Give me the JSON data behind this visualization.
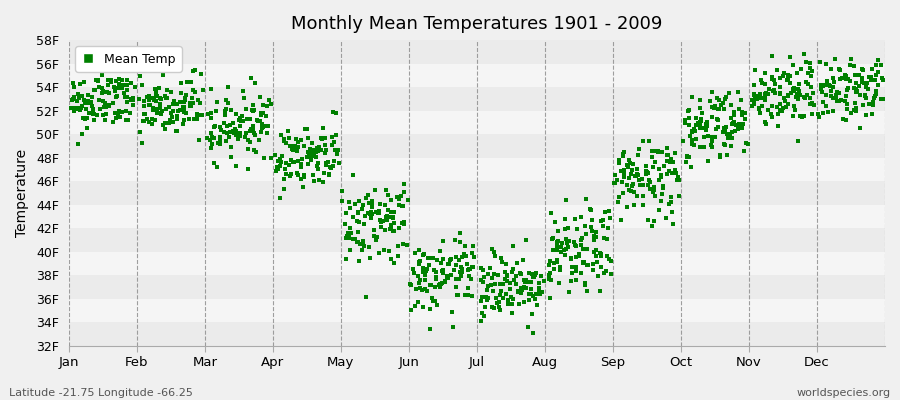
{
  "title": "Monthly Mean Temperatures 1901 - 2009",
  "ylabel": "Temperature",
  "bottom_left": "Latitude -21.75 Longitude -66.25",
  "bottom_right": "worldspecies.org",
  "legend_label": "Mean Temp",
  "ylim": [
    32,
    58
  ],
  "yticks": [
    32,
    34,
    36,
    38,
    40,
    42,
    44,
    46,
    48,
    50,
    52,
    54,
    56,
    58
  ],
  "ytick_labels": [
    "32F",
    "34F",
    "36F",
    "38F",
    "40F",
    "42F",
    "44F",
    "46F",
    "48F",
    "50F",
    "52F",
    "54F",
    "56F",
    "58F"
  ],
  "months": [
    "Jan",
    "Feb",
    "Mar",
    "Apr",
    "May",
    "Jun",
    "Jul",
    "Aug",
    "Sep",
    "Oct",
    "Nov",
    "Dec"
  ],
  "dot_color": "#008000",
  "background_color": "#f0f0f0",
  "band_colors": [
    "#ebebeb",
    "#f5f5f5"
  ],
  "n_years": 109,
  "seed": 42,
  "monthly_means": [
    52.8,
    52.2,
    50.8,
    48.2,
    42.5,
    37.8,
    37.2,
    39.8,
    46.2,
    50.8,
    53.5,
    53.8
  ],
  "monthly_stds": [
    1.3,
    1.4,
    1.4,
    1.3,
    1.8,
    1.5,
    1.5,
    1.8,
    1.8,
    1.6,
    1.5,
    1.3
  ],
  "trend_per_year": [
    0.005,
    0.005,
    0.005,
    0.005,
    0.005,
    0.005,
    0.005,
    0.005,
    0.005,
    0.005,
    0.005,
    0.005
  ]
}
